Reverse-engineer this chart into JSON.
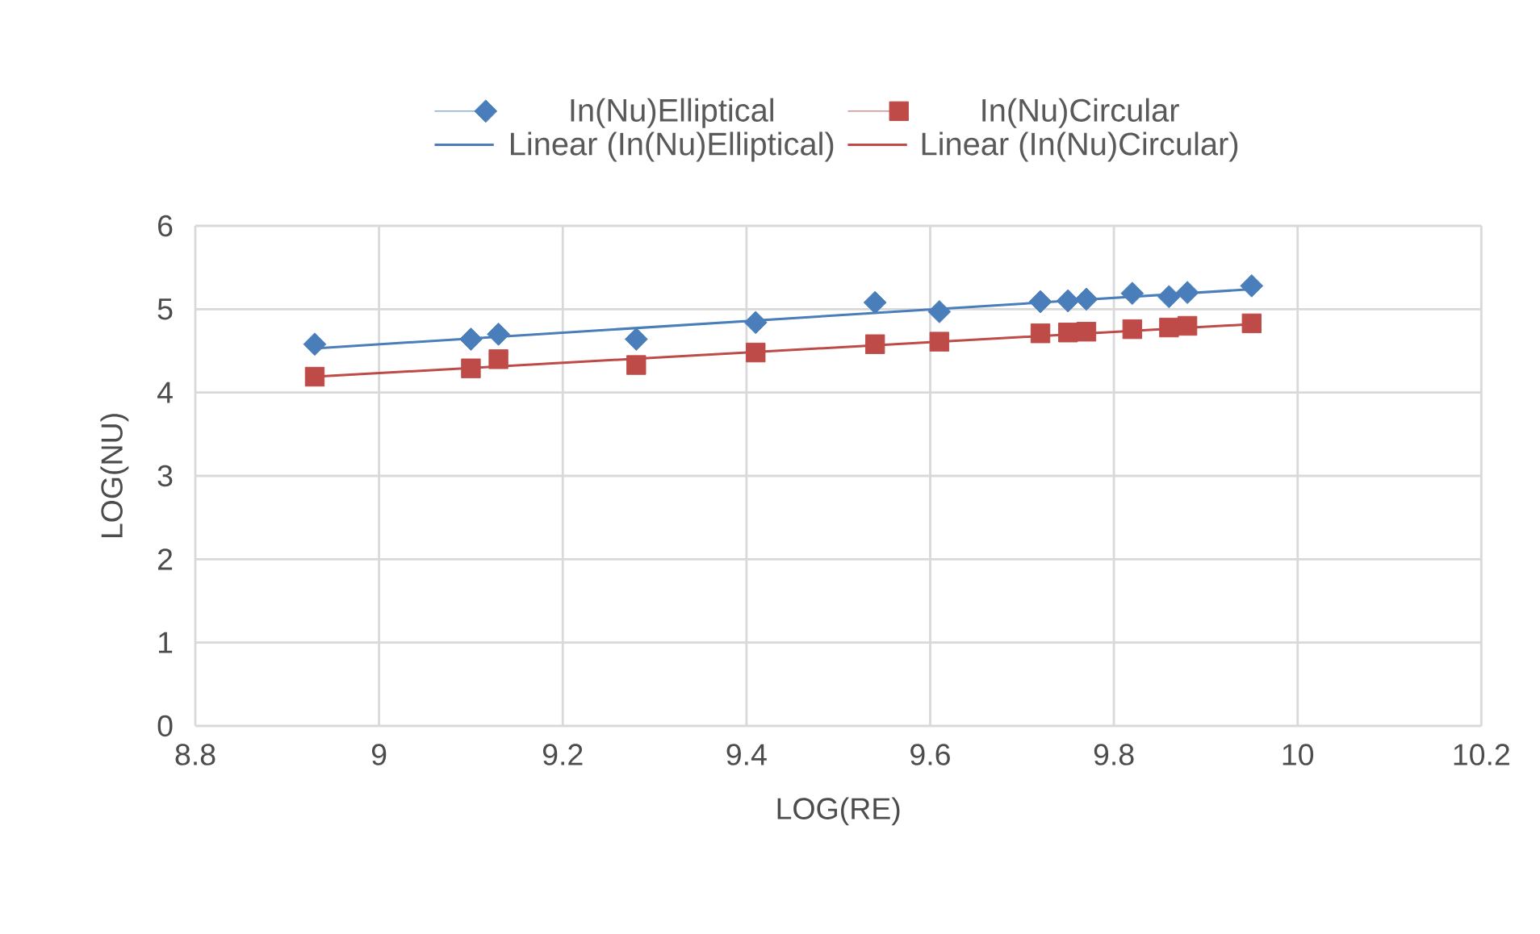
{
  "chart_data": {
    "type": "scatter",
    "xlabel": "LOG(RE)",
    "ylabel": "LOG(NU)",
    "xlim": [
      8.8,
      10.2
    ],
    "ylim": [
      0,
      6
    ],
    "xticks": [
      8.8,
      9,
      9.2,
      9.4,
      9.6,
      9.8,
      10,
      10.2
    ],
    "yticks": [
      0,
      1,
      2,
      3,
      4,
      5,
      6
    ],
    "grid": true,
    "legend": "top",
    "series": [
      {
        "name": "In(Nu)Elliptical",
        "color": "#4a7ebb",
        "marker": "diamond",
        "x": [
          8.93,
          9.1,
          9.13,
          9.28,
          9.41,
          9.54,
          9.61,
          9.72,
          9.75,
          9.77,
          9.82,
          9.86,
          9.88,
          9.95
        ],
        "values": [
          4.58,
          4.64,
          4.7,
          4.64,
          4.84,
          5.08,
          4.97,
          5.09,
          5.1,
          5.12,
          5.19,
          5.15,
          5.2,
          5.28
        ]
      },
      {
        "name": "In(Nu)Circular",
        "color": "#be4b48",
        "marker": "square",
        "x": [
          8.93,
          9.1,
          9.13,
          9.28,
          9.41,
          9.54,
          9.61,
          9.72,
          9.75,
          9.77,
          9.82,
          9.86,
          9.88,
          9.95
        ],
        "values": [
          4.19,
          4.29,
          4.4,
          4.33,
          4.48,
          4.58,
          4.61,
          4.71,
          4.72,
          4.73,
          4.76,
          4.78,
          4.8,
          4.83
        ]
      },
      {
        "name": "Linear (In(Nu)Elliptical)",
        "type": "line",
        "color": "#4a7ebb",
        "marker": "none",
        "x": [
          8.93,
          9.95
        ],
        "values": [
          4.53,
          5.24
        ]
      },
      {
        "name": "Linear (In(Nu)Circular)",
        "type": "line",
        "color": "#be4b48",
        "marker": "none",
        "x": [
          8.93,
          9.95
        ],
        "values": [
          4.19,
          4.82
        ]
      }
    ]
  }
}
